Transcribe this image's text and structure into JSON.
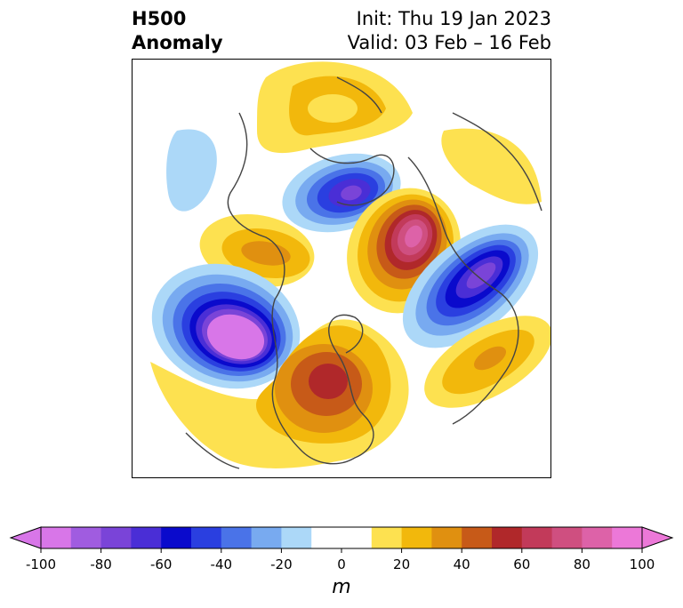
{
  "header": {
    "title_line1": "H500",
    "title_line2": "Anomaly",
    "init_text": "Init: Thu 19 Jan 2023",
    "valid_text": "Valid: 03 Feb – 16 Feb"
  },
  "colorbar": {
    "unit": "m",
    "ticks": [
      "-100",
      "-80",
      "-60",
      "-40",
      "-20",
      "0",
      "20",
      "40",
      "60",
      "80",
      "100"
    ],
    "tick_values": [
      -100,
      -80,
      -60,
      -40,
      -20,
      0,
      20,
      40,
      60,
      80,
      100
    ],
    "range": [
      -100,
      100
    ],
    "extend": "both",
    "colors": [
      "#d876e8",
      "#a05ce0",
      "#7a44d8",
      "#4a2ed6",
      "#0a0acc",
      "#2a3fe0",
      "#4a73e8",
      "#78aaf0",
      "#acd8f8",
      "#ffffff",
      "#ffffff",
      "#fde150",
      "#f2b80c",
      "#e09010",
      "#c75a18",
      "#b0282a",
      "#c23a5a",
      "#cf4f80",
      "#dd62a8",
      "#ec78d8"
    ],
    "under_color": "#d876e8",
    "over_color": "#ec78d8"
  }
}
